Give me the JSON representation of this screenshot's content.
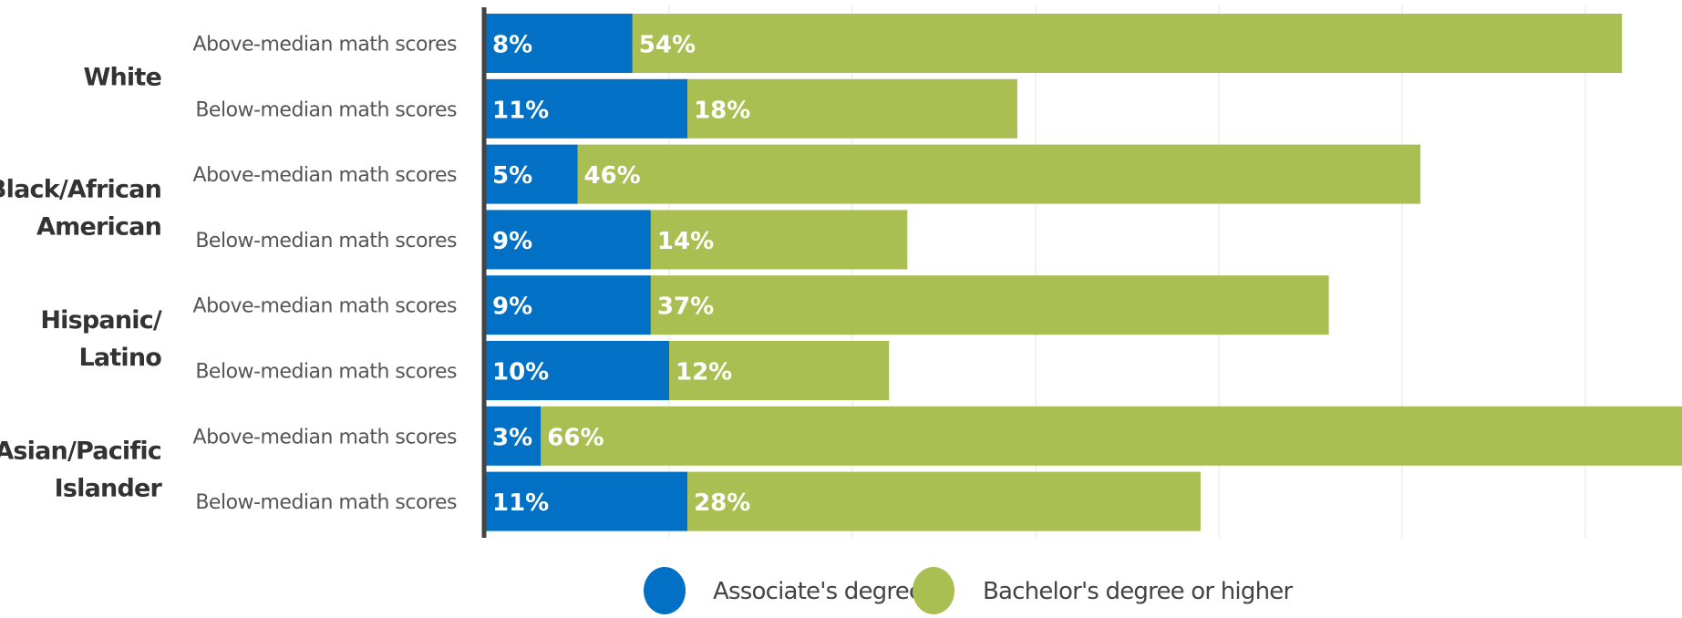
{
  "chart_data": {
    "type": "bar",
    "orientation": "horizontal",
    "stacked": true,
    "groups": [
      {
        "name_lines": [
          "White"
        ],
        "rows": [
          {
            "label": "Above-median math scores",
            "values": [
              8,
              54
            ],
            "value_labels": [
              "8%",
              "54%"
            ]
          },
          {
            "label": "Below-median math scores",
            "values": [
              11,
              18
            ],
            "value_labels": [
              "11%",
              "18%"
            ]
          }
        ]
      },
      {
        "name_lines": [
          "Black/African",
          "American"
        ],
        "rows": [
          {
            "label": "Above-median math scores",
            "values": [
              5,
              46
            ],
            "value_labels": [
              "5%",
              "46%"
            ]
          },
          {
            "label": "Below-median math scores",
            "values": [
              9,
              14
            ],
            "value_labels": [
              "9%",
              "14%"
            ]
          }
        ]
      },
      {
        "name_lines": [
          "Hispanic/",
          "Latino"
        ],
        "rows": [
          {
            "label": "Above-median math scores",
            "values": [
              9,
              37
            ],
            "value_labels": [
              "9%",
              "37%"
            ]
          },
          {
            "label": "Below-median math scores",
            "values": [
              10,
              12
            ],
            "value_labels": [
              "10%",
              "12%"
            ]
          }
        ]
      },
      {
        "name_lines": [
          "Asian/Pacific",
          "Islander"
        ],
        "rows": [
          {
            "label": "Above-median math scores",
            "values": [
              3,
              66
            ],
            "value_labels": [
              "3%",
              "66%"
            ]
          },
          {
            "label": "Below-median math scores",
            "values": [
              11,
              28
            ],
            "value_labels": [
              "11%",
              "28%"
            ]
          }
        ]
      }
    ],
    "series": [
      {
        "name": "Associate's degree",
        "color": "#0271c5"
      },
      {
        "name": "Bachelor's degree or higher",
        "color": "#a9bf52"
      }
    ],
    "xlim": [
      0,
      69
    ],
    "grid": true,
    "legend_position": "bottom"
  }
}
